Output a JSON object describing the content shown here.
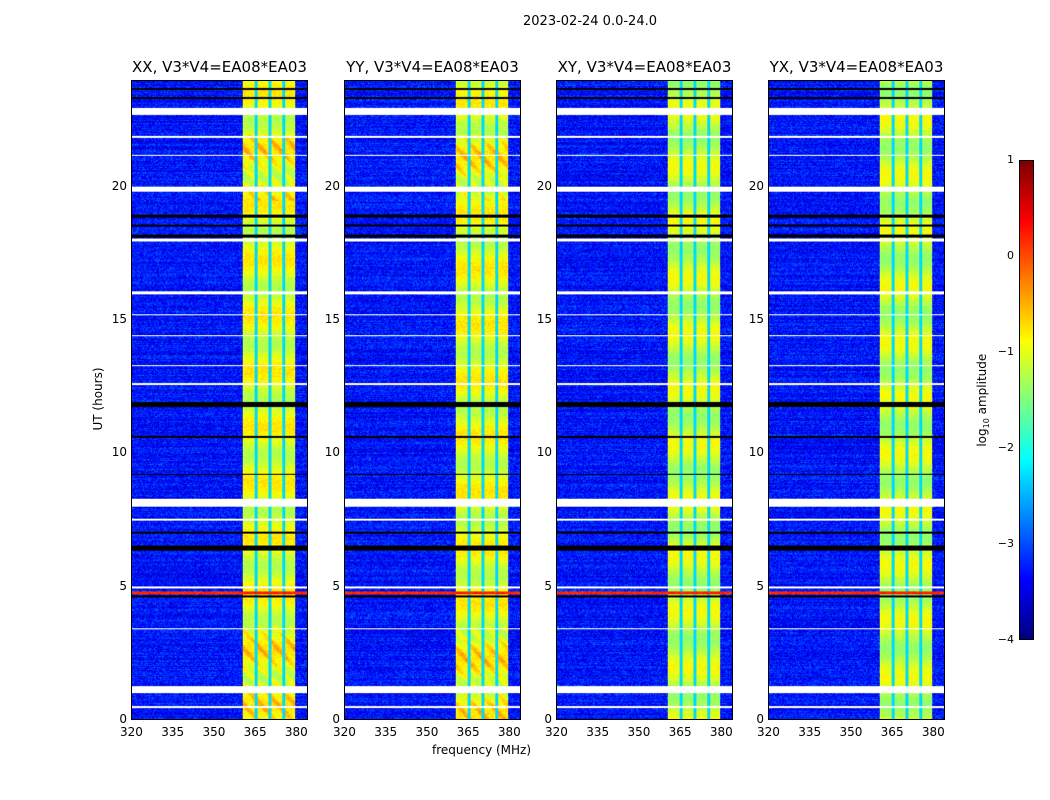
{
  "chart_data": {
    "type": "heatmap",
    "title": "2023-02-24 0.0-24.0",
    "xlabel": "frequency (MHz)",
    "ylabel": "UT (hours)",
    "xlim": [
      320,
      384.4
    ],
    "ylim": [
      0,
      24
    ],
    "xticks": [
      "320",
      "335",
      "350",
      "365",
      "380"
    ],
    "xtick_values": [
      320,
      335,
      350,
      365,
      380
    ],
    "yticks": [
      "0",
      "5",
      "10",
      "15",
      "20"
    ],
    "ytick_values": [
      0,
      5,
      10,
      15,
      20
    ],
    "panels": [
      {
        "title": "XX, V3*V4=EA08*EA03"
      },
      {
        "title": "YY, V3*V4=EA08*EA03"
      },
      {
        "title": "XY, V3*V4=EA08*EA03"
      },
      {
        "title": "YX, V3*V4=EA08*EA03"
      }
    ],
    "colorbar": {
      "label": "log10 amplitude",
      "label_main": "log",
      "label_sub": "10",
      "label_rest": " amplitude",
      "range": [
        -4,
        1
      ],
      "ticks": [
        "1",
        "0",
        "−1",
        "−2",
        "−3",
        "−4"
      ],
      "tick_values": [
        1,
        0,
        -1,
        -2,
        -3,
        -4
      ],
      "colormap": "jet"
    },
    "background_level": -3.3,
    "bright_band_MHz": [
      360.7,
      380.0
    ],
    "bright_band_level": -1.0,
    "band_gaps_MHz": [
      365.5,
      370.6,
      375.6
    ],
    "flagged_white_hours": [
      [
        22.75,
        23.0
      ],
      [
        19.85,
        20.05
      ],
      [
        21.9,
        21.95
      ],
      [
        21.2,
        21.25
      ],
      [
        18.0,
        18.1
      ],
      [
        16.0,
        16.1
      ],
      [
        15.2,
        15.25
      ],
      [
        14.4,
        14.45
      ],
      [
        8.0,
        8.3
      ],
      [
        7.5,
        7.55
      ],
      [
        3.4,
        3.45
      ],
      [
        1.0,
        1.25
      ],
      [
        0.45,
        0.5
      ],
      [
        4.95,
        5.0
      ],
      [
        13.3,
        13.35
      ],
      [
        12.6,
        12.65
      ]
    ],
    "flagged_black_hours": [
      [
        23.7,
        23.75
      ],
      [
        23.35,
        23.4
      ],
      [
        18.9,
        19.0
      ],
      [
        18.55,
        18.6
      ],
      [
        18.15,
        18.25
      ],
      [
        11.75,
        11.95
      ],
      [
        10.6,
        10.65
      ],
      [
        6.35,
        6.55
      ],
      [
        4.6,
        4.65
      ],
      [
        9.2,
        9.25
      ],
      [
        7.0,
        7.05
      ]
    ],
    "rfi_hot_hours": [
      4.7,
      4.8
    ]
  }
}
